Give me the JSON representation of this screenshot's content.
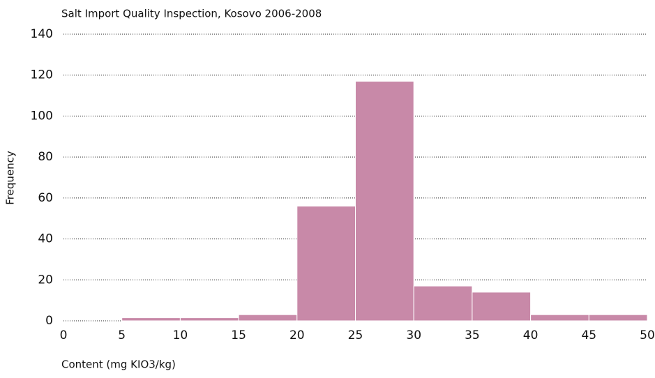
{
  "chart_data": {
    "type": "histogram",
    "title": "Salt Import Quality Inspection, Kosovo 2006-2008",
    "x_label": "Content (mg KIO3/kg)",
    "y_label": "Frequency",
    "bins": [
      0,
      5,
      10,
      15,
      20,
      25,
      30,
      35,
      40,
      45,
      50
    ],
    "values": [
      0,
      1.5,
      1.5,
      3,
      56,
      117,
      17,
      14,
      3,
      3
    ],
    "color": "#c889a8",
    "xlim": [
      0,
      50
    ],
    "xticks": [
      0,
      5,
      10,
      15,
      20,
      25,
      30,
      35,
      40,
      45,
      50
    ],
    "ylim": [
      0,
      140
    ],
    "yticks": [
      0,
      20,
      40,
      60,
      80,
      100,
      120,
      140
    ],
    "grid": true
  }
}
